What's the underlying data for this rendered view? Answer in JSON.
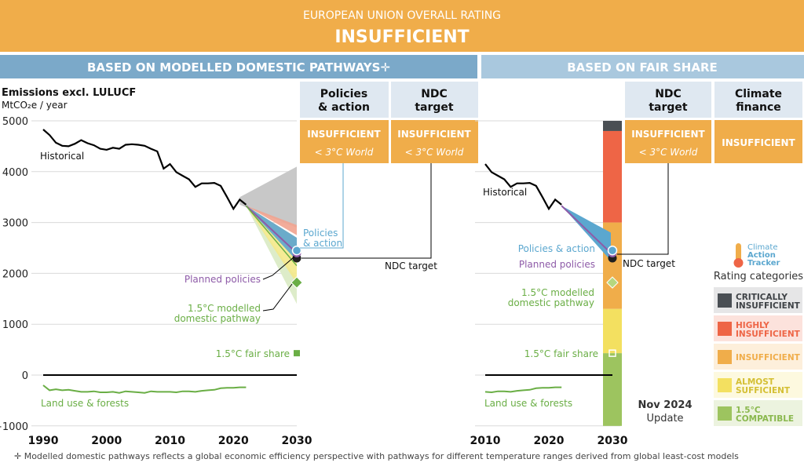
{
  "banner": {
    "title": "EUROPEAN UNION OVERALL RATING",
    "rating": "INSUFFICIENT",
    "color": "#F0AD4A"
  },
  "left_header": "BASED ON MODELLED DOMESTIC PATHWAYS✛",
  "right_header": "BASED ON FAIR SHARE",
  "header_colors": {
    "left": "#7BA9C9",
    "right": "#A9C8DE",
    "column_box": "#DFE8F1"
  },
  "columns": {
    "policies": {
      "title": [
        "Policies",
        "& action"
      ],
      "rating": "INSUFFICIENT",
      "sub": "< 3°C World"
    },
    "ndc_left": {
      "title": [
        "NDC",
        "target"
      ],
      "rating": "INSUFFICIENT",
      "sub": "< 3°C World"
    },
    "ndc_right": {
      "title": [
        "NDC",
        "target"
      ],
      "rating": "INSUFFICIENT",
      "sub": "< 3°C World"
    },
    "finance": {
      "title": [
        "Climate",
        "finance"
      ],
      "rating": "INSUFFICIENT"
    }
  },
  "chart_data": [
    {
      "type": "line",
      "ylabel": "Emissions excl. LULUCF",
      "yunit": "MtCO₂e / year",
      "ylim": [
        -1000,
        5000
      ],
      "yticks": [
        "5000",
        "4000",
        "3000",
        "2000",
        "1000",
        "0",
        "−1000"
      ],
      "yticks_values": [
        5000,
        4000,
        3000,
        2000,
        1000,
        0,
        -1000
      ],
      "xlim": [
        1990,
        2030
      ],
      "xticks": [
        "1990",
        "2000",
        "2010",
        "2020",
        "2030"
      ],
      "xticks_values": [
        1990,
        2000,
        2010,
        2020,
        2030
      ],
      "grid": true,
      "series": [
        {
          "name": "Historical",
          "color": "#000000",
          "x": [
            1990,
            1991,
            1992,
            1993,
            1994,
            1995,
            1996,
            1997,
            1998,
            1999,
            2000,
            2001,
            2002,
            2003,
            2004,
            2005,
            2006,
            2007,
            2008,
            2009,
            2010,
            2011,
            2012,
            2013,
            2014,
            2015,
            2016,
            2017,
            2018,
            2019,
            2020,
            2021,
            2022
          ],
          "y": [
            4830,
            4720,
            4570,
            4510,
            4500,
            4550,
            4620,
            4560,
            4520,
            4450,
            4430,
            4470,
            4450,
            4530,
            4540,
            4530,
            4510,
            4450,
            4400,
            4060,
            4150,
            3990,
            3920,
            3850,
            3700,
            3770,
            3770,
            3780,
            3720,
            3500,
            3270,
            3450,
            3350
          ]
        },
        {
          "name": "Land use & forests",
          "color": "#6AAE45",
          "x": [
            1990,
            1991,
            1992,
            1993,
            1994,
            1995,
            1996,
            1997,
            1998,
            1999,
            2000,
            2001,
            2002,
            2003,
            2004,
            2005,
            2006,
            2007,
            2008,
            2009,
            2010,
            2011,
            2012,
            2013,
            2014,
            2015,
            2016,
            2017,
            2018,
            2019,
            2020,
            2021,
            2022
          ],
          "y": [
            -200,
            -300,
            -280,
            -300,
            -290,
            -310,
            -330,
            -330,
            -320,
            -340,
            -340,
            -330,
            -350,
            -320,
            -330,
            -340,
            -350,
            -320,
            -330,
            -330,
            -330,
            -340,
            -320,
            -320,
            -330,
            -310,
            -300,
            -290,
            -260,
            -250,
            -250,
            -240,
            -240
          ]
        }
      ],
      "policies_action_2030": 2450,
      "planned_policies_2030": 2400,
      "ndc_target_2030": 2300,
      "pathway_1p5_2030": 1820,
      "fair_share_1p5_2030": 430,
      "labels": {
        "historical": "Historical",
        "land_use": "Land use & forests",
        "policies_action": [
          "Policies",
          "& action"
        ],
        "planned_policies": "Planned policies",
        "pathway": [
          "1.5°C modelled",
          "domestic pathway"
        ],
        "fair_share": "1.5°C fair share",
        "ndc_target": "NDC target"
      }
    },
    {
      "type": "line",
      "xlim": [
        2010,
        2030
      ],
      "xticks": [
        "2010",
        "2020",
        "2030"
      ],
      "xticks_values": [
        2010,
        2020,
        2030
      ],
      "fair_share_bands": [
        {
          "name": "Critically insufficient",
          "from": 4800,
          "to": 5000,
          "color": "#4A4F54"
        },
        {
          "name": "Highly insufficient",
          "from": 3000,
          "to": 4800,
          "color": "#EE6546"
        },
        {
          "name": "Insufficient",
          "from": 1300,
          "to": 3000,
          "color": "#F0AD4A"
        },
        {
          "name": "Almost sufficient",
          "from": 430,
          "to": 1300,
          "color": "#F3E060"
        },
        {
          "name": "1.5°C compatible",
          "from": -1000,
          "to": 430,
          "color": "#9DC45F"
        }
      ],
      "labels": {
        "historical": "Historical",
        "land_use": "Land use & forests",
        "policies_action": "Policies & action",
        "planned_policies": "Planned policies",
        "ndc_target": "NDC target",
        "pathway": [
          "1.5°C modelled",
          "domestic pathway"
        ],
        "fair_share": "1.5°C fair share"
      }
    }
  ],
  "logo": {
    "text": [
      "Climate",
      "Action",
      "Tracker"
    ]
  },
  "legend": {
    "title": "Rating categories",
    "items": [
      {
        "label": [
          "CRITICALLY",
          "INSUFFICIENT"
        ],
        "swatch": "#4A4F54",
        "bg": "#E6E6E7",
        "text": "#3E4246"
      },
      {
        "label": [
          "HIGHLY",
          "INSUFFICIENT"
        ],
        "swatch": "#EE6546",
        "bg": "#FCE2DC",
        "text": "#EE6546"
      },
      {
        "label": [
          "INSUFFICIENT"
        ],
        "swatch": "#F0AD4A",
        "bg": "#FDEFDB",
        "text": "#F0AD4A"
      },
      {
        "label": [
          "ALMOST",
          "SUFFICIENT"
        ],
        "swatch": "#F3E060",
        "bg": "#FDF9DF",
        "text": "#D4BF33"
      },
      {
        "label": [
          "1.5°C",
          "COMPATIBLE"
        ],
        "swatch": "#9DC45F",
        "bg": "#ECF3DF",
        "text": "#8AB84E"
      }
    ]
  },
  "update": [
    "Nov 2024",
    "Update"
  ],
  "footnote": "✛  Modelled domestic pathways reflects a global economic efficiency perspective with pathways for different temperature ranges derived from global least-cost models",
  "colors": {
    "policies": "#5BA7CF",
    "planned": "#8E5BA8",
    "ndc": "#1F1F1F",
    "green": "#6AAE45",
    "grey_range": "#C8C8C8"
  }
}
